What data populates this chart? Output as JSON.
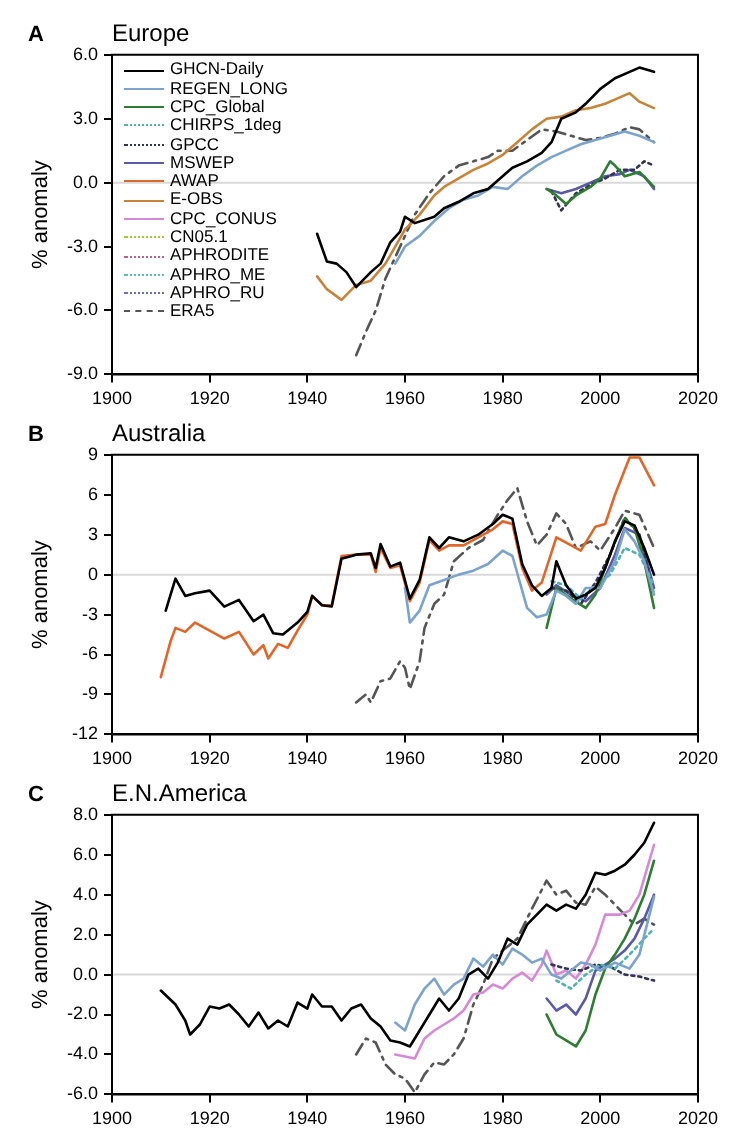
{
  "chart_data": [
    {
      "type": "line",
      "title": "Europe",
      "annotations": [
        "A"
      ],
      "ylabel": "% anomaly",
      "xlim": [
        1900,
        2020
      ],
      "xticks": [
        1900,
        1920,
        1940,
        1960,
        1980,
        2000,
        2020
      ],
      "ylim": [
        -9,
        6
      ],
      "yticks": [
        {
          "value": -9,
          "label": "-9.0"
        },
        {
          "value": -6,
          "label": "-6.0"
        },
        {
          "value": -3,
          "label": "-3.0"
        },
        {
          "value": 0,
          "label": "0.0"
        },
        {
          "value": 3,
          "label": "3.0"
        },
        {
          "value": 6,
          "label": "6.0"
        }
      ],
      "grid": false,
      "marker": "none",
      "legend": "top left",
      "ref_lines": [
        {
          "axis": "y",
          "value": 0,
          "color": "#d9d9d9"
        }
      ],
      "series": [
        {
          "name": "GHCN-Daily",
          "color": "#000000",
          "line_style": "solid",
          "x": [
            1942,
            1944,
            1946,
            1948,
            1950,
            1953,
            1955,
            1957,
            1959,
            1960,
            1962,
            1966,
            1968,
            1971,
            1974,
            1977,
            1979,
            1982,
            1985,
            1988,
            1990,
            1992,
            1995,
            1997,
            2000,
            2003,
            2006,
            2008,
            2011
          ],
          "values": [
            -2.4,
            -3.7,
            -3.8,
            -4.2,
            -4.9,
            -4.2,
            -3.8,
            -2.8,
            -2.3,
            -1.6,
            -1.9,
            -1.6,
            -1.2,
            -0.9,
            -0.5,
            -0.3,
            0.1,
            0.7,
            1.0,
            1.4,
            1.9,
            3.0,
            3.3,
            3.7,
            4.4,
            4.9,
            5.2,
            5.4,
            5.2
          ]
        },
        {
          "name": "REGEN_LONG",
          "color": "#7ba3cc",
          "line_style": "solid",
          "x": [
            1958,
            1960,
            1963,
            1966,
            1969,
            1972,
            1975,
            1978,
            1981,
            1984,
            1987,
            1990,
            1993,
            1996,
            1999,
            2002,
            2005,
            2008,
            2011
          ],
          "values": [
            -3.8,
            -3.0,
            -2.5,
            -1.8,
            -1.2,
            -0.8,
            -0.6,
            -0.2,
            -0.3,
            0.3,
            0.8,
            1.2,
            1.5,
            1.8,
            2.0,
            2.2,
            2.4,
            2.2,
            1.9
          ]
        },
        {
          "name": "CPC_Global",
          "color": "#2e7d32",
          "line_style": "solid",
          "x": [
            1989,
            1991,
            1993,
            1995,
            1998,
            2000,
            2002,
            2003,
            2005,
            2008,
            2011
          ],
          "values": [
            -0.3,
            -0.6,
            -1.0,
            -0.6,
            -0.2,
            0.2,
            1.0,
            0.8,
            0.3,
            0.5,
            -0.2
          ]
        },
        {
          "name": "CHIRPS_1deg",
          "color": "#4fb3b3",
          "line_style": "dotted"
        },
        {
          "name": "GPCC",
          "color": "#333355",
          "line_style": "dotted",
          "x": [
            1990,
            1992,
            1995,
            1998,
            2001,
            2004,
            2007,
            2009,
            2011
          ],
          "values": [
            -0.4,
            -1.3,
            -0.5,
            -0.1,
            0.2,
            0.6,
            0.6,
            1.0,
            0.8
          ]
        },
        {
          "name": "MSWEP",
          "color": "#5a5aa8",
          "line_style": "solid",
          "x": [
            1989,
            1992,
            1995,
            1998,
            2001,
            2004,
            2006,
            2009,
            2011
          ],
          "values": [
            -0.3,
            -0.5,
            -0.3,
            0.0,
            0.3,
            0.4,
            0.6,
            0.3,
            -0.3
          ]
        },
        {
          "name": "AWAP",
          "color": "#e0662a",
          "line_style": "solid"
        },
        {
          "name": "E-OBS",
          "color": "#c8843a",
          "line_style": "solid",
          "x": [
            1942,
            1944,
            1947,
            1950,
            1953,
            1956,
            1958,
            1960,
            1963,
            1966,
            1968,
            1971,
            1974,
            1977,
            1980,
            1983,
            1986,
            1989,
            1992,
            1995,
            1998,
            2001,
            2004,
            2006,
            2008,
            2011
          ],
          "values": [
            -4.4,
            -5.0,
            -5.5,
            -4.8,
            -4.6,
            -3.8,
            -3.0,
            -2.2,
            -1.5,
            -0.6,
            -0.2,
            0.2,
            0.6,
            0.9,
            1.3,
            1.9,
            2.5,
            3.0,
            3.1,
            3.4,
            3.5,
            3.7,
            4.0,
            4.2,
            3.8,
            3.5
          ]
        },
        {
          "name": "CPC_CONUS",
          "color": "#d68ad6",
          "line_style": "solid"
        },
        {
          "name": "CN05.1",
          "color": "#9acd32",
          "line_style": "dotted"
        },
        {
          "name": "APHRODITE",
          "color": "#c0608a",
          "line_style": "dotted"
        },
        {
          "name": "APHRO_ME",
          "color": "#5fc0b0",
          "line_style": "dotted"
        },
        {
          "name": "APHRO_RU",
          "color": "#7070b0",
          "line_style": "dotted"
        },
        {
          "name": "ERA5",
          "color": "#555555",
          "line_style": "dashed",
          "x": [
            1950,
            1952,
            1954,
            1956,
            1958,
            1960,
            1962,
            1965,
            1968,
            1971,
            1974,
            1977,
            1979,
            1982,
            1985,
            1988,
            1991,
            1994,
            1997,
            2000,
            2003,
            2006,
            2008,
            2011
          ],
          "values": [
            -8.1,
            -7.0,
            -6.0,
            -4.5,
            -3.5,
            -2.5,
            -1.5,
            -0.5,
            0.3,
            0.8,
            1.0,
            1.2,
            1.5,
            1.5,
            2.0,
            2.5,
            2.4,
            2.2,
            2.0,
            2.1,
            2.3,
            2.6,
            2.5,
            1.9
          ]
        }
      ]
    },
    {
      "type": "line",
      "title": "Australia",
      "annotations": [
        "B"
      ],
      "ylabel": "% anomaly",
      "xlim": [
        1900,
        2020
      ],
      "xticks": [
        1900,
        1920,
        1940,
        1960,
        1980,
        2000,
        2020
      ],
      "ylim": [
        -12,
        9
      ],
      "yticks": [
        -12,
        -9,
        -6,
        -3,
        0,
        3,
        6,
        9
      ],
      "grid": false,
      "marker": "none",
      "ref_lines": [
        {
          "axis": "y",
          "value": 0,
          "color": "#d9d9d9"
        }
      ],
      "series": [
        {
          "color": "#000000",
          "line_style": "solid",
          "x": [
            1911,
            1913,
            1915,
            1917,
            1920,
            1923,
            1926,
            1929,
            1931,
            1933,
            1935,
            1938,
            1940,
            1941,
            1943,
            1945,
            1947,
            1950,
            1953,
            1954,
            1955,
            1957,
            1959,
            1961,
            1963,
            1965,
            1967,
            1969,
            1972,
            1975,
            1978,
            1980,
            1982,
            1984,
            1986,
            1988,
            1990,
            1991,
            1993,
            1995,
            1997,
            1999,
            2001,
            2003,
            2005,
            2007,
            2009,
            2011
          ],
          "values": [
            -2.7,
            -0.3,
            -1.6,
            -1.4,
            -1.2,
            -2.4,
            -1.9,
            -3.5,
            -3.0,
            -4.4,
            -4.5,
            -3.6,
            -2.8,
            -1.6,
            -2.3,
            -2.4,
            1.2,
            1.5,
            1.6,
            0.5,
            2.3,
            0.6,
            0.9,
            -1.8,
            -0.4,
            2.8,
            2.0,
            2.8,
            2.5,
            3.0,
            3.8,
            4.5,
            4.2,
            0.8,
            -0.8,
            -1.6,
            -1.0,
            1.0,
            -0.8,
            -1.8,
            -1.5,
            -1.0,
            0.5,
            2.5,
            4.0,
            3.7,
            2.0,
            0.0
          ]
        },
        {
          "color": "#7ba3cc",
          "line_style": "solid",
          "x": [
            1960,
            1961,
            1963,
            1965,
            1968,
            1971,
            1974,
            1977,
            1980,
            1982,
            1985,
            1987,
            1989,
            1991,
            1993,
            1995,
            1997,
            2000,
            2003,
            2005,
            2007,
            2009,
            2011
          ],
          "values": [
            -1.0,
            -3.6,
            -2.7,
            -0.8,
            -0.4,
            0.0,
            0.3,
            0.8,
            1.8,
            1.4,
            -2.5,
            -3.2,
            -3.0,
            -1.2,
            -1.6,
            -2.2,
            -1.0,
            -1.0,
            1.0,
            3.4,
            2.5,
            1.0,
            -1.5
          ]
        },
        {
          "color": "#2e7d32",
          "line_style": "solid",
          "x": [
            1989,
            1991,
            1994,
            1997,
            1999,
            2001,
            2003,
            2005,
            2007,
            2009,
            2011
          ],
          "values": [
            -4.0,
            -1.0,
            -1.8,
            -2.5,
            -1.5,
            0.5,
            2.5,
            4.2,
            3.5,
            1.0,
            -2.5
          ]
        },
        {
          "color": "#4fb3b3",
          "line_style": "dotted",
          "x": [
            1990,
            1993,
            1996,
            1999,
            2002,
            2005,
            2008,
            2011
          ],
          "values": [
            -0.5,
            -0.8,
            -1.8,
            -0.8,
            0.0,
            2.0,
            1.5,
            -0.8
          ]
        },
        {
          "color": "#333355",
          "line_style": "dotted",
          "x": [
            1990,
            1993,
            1996,
            1999,
            2002,
            2005,
            2008,
            2011
          ],
          "values": [
            -1.0,
            -1.2,
            -2.2,
            -0.6,
            1.5,
            4.3,
            3.0,
            -1.5
          ]
        },
        {
          "color": "#5a5aa8",
          "line_style": "solid",
          "x": [
            1989,
            1991,
            1994,
            1997,
            2000,
            2003,
            2005,
            2008,
            2011
          ],
          "values": [
            -1.5,
            -0.8,
            -1.5,
            -2.0,
            -1.0,
            1.5,
            3.5,
            3.0,
            -1.0
          ]
        },
        {
          "color": "#e0662a",
          "line_style": "solid",
          "x": [
            1910,
            1912,
            1913,
            1915,
            1917,
            1920,
            1923,
            1926,
            1929,
            1931,
            1932,
            1934,
            1936,
            1938,
            1940,
            1941,
            1943,
            1945,
            1947,
            1950,
            1953,
            1954,
            1955,
            1957,
            1959,
            1961,
            1963,
            1965,
            1967,
            1969,
            1972,
            1975,
            1978,
            1980,
            1982,
            1984,
            1986,
            1988,
            1991,
            1993,
            1996,
            1999,
            2001,
            2003,
            2006,
            2008,
            2011
          ],
          "values": [
            -7.7,
            -5.0,
            -4.0,
            -4.3,
            -3.6,
            -4.2,
            -4.8,
            -4.3,
            -6.0,
            -5.3,
            -6.3,
            -5.2,
            -5.5,
            -4.2,
            -3.0,
            -1.6,
            -2.3,
            -2.3,
            1.4,
            1.5,
            1.5,
            0.2,
            2.0,
            0.5,
            0.7,
            -2.0,
            -0.6,
            2.6,
            1.8,
            2.2,
            2.2,
            2.8,
            3.4,
            4.0,
            3.8,
            0.5,
            -1.2,
            -0.6,
            2.8,
            2.4,
            1.8,
            3.6,
            3.8,
            6.0,
            8.8,
            8.8,
            6.7
          ]
        },
        {
          "color": "#555555",
          "line_style": "dashed",
          "x": [
            1950,
            1952,
            1953,
            1955,
            1957,
            1959,
            1960,
            1961,
            1963,
            1964,
            1966,
            1968,
            1970,
            1973,
            1976,
            1979,
            1981,
            1983,
            1985,
            1987,
            1989,
            1991,
            1993,
            1995,
            1998,
            2000,
            2003,
            2005,
            2008,
            2011
          ],
          "values": [
            -9.6,
            -9.0,
            -9.6,
            -8.0,
            -7.8,
            -6.5,
            -7.0,
            -8.6,
            -6.5,
            -4.0,
            -2.2,
            -1.5,
            1.0,
            2.0,
            2.6,
            4.5,
            5.6,
            6.5,
            4.0,
            2.2,
            3.0,
            4.6,
            3.8,
            2.0,
            2.5,
            1.8,
            3.5,
            4.8,
            4.5,
            2.0
          ]
        }
      ]
    },
    {
      "type": "line",
      "title": "E.N.America",
      "annotations": [
        "C"
      ],
      "ylabel": "% anomaly",
      "xlim": [
        1900,
        2020
      ],
      "xticks": [
        1900,
        1920,
        1940,
        1960,
        1980,
        2000,
        2020
      ],
      "ylim": [
        -6,
        8
      ],
      "yticks": [
        {
          "value": -6,
          "label": "-6.0"
        },
        {
          "value": -4,
          "label": "-4.0"
        },
        {
          "value": -2,
          "label": "-2.0"
        },
        {
          "value": 0,
          "label": "0.0"
        },
        {
          "value": 2,
          "label": "2.0"
        },
        {
          "value": 4,
          "label": "4.0"
        },
        {
          "value": 6,
          "label": "6.0"
        },
        {
          "value": 8,
          "label": "8.0"
        }
      ],
      "grid": false,
      "marker": "none",
      "ref_lines": [
        {
          "axis": "y",
          "value": 0,
          "color": "#d9d9d9"
        }
      ],
      "series": [
        {
          "color": "#000000",
          "line_style": "solid",
          "x": [
            1910,
            1913,
            1915,
            1916,
            1918,
            1920,
            1922,
            1924,
            1926,
            1928,
            1930,
            1932,
            1934,
            1936,
            1938,
            1940,
            1941,
            1943,
            1945,
            1947,
            1949,
            1951,
            1953,
            1955,
            1957,
            1959,
            1961,
            1963,
            1965,
            1967,
            1969,
            1971,
            1973,
            1975,
            1977,
            1979,
            1981,
            1983,
            1985,
            1987,
            1989,
            1991,
            1993,
            1995,
            1997,
            1999,
            2001,
            2003,
            2005,
            2007,
            2009,
            2011
          ],
          "values": [
            -0.8,
            -1.5,
            -2.3,
            -3.0,
            -2.5,
            -1.6,
            -1.7,
            -1.5,
            -2.0,
            -2.6,
            -1.9,
            -2.7,
            -2.3,
            -2.6,
            -1.4,
            -1.7,
            -1.0,
            -1.6,
            -1.6,
            -2.3,
            -1.7,
            -1.5,
            -2.2,
            -2.6,
            -3.3,
            -3.4,
            -3.6,
            -2.8,
            -2.0,
            -1.2,
            -1.8,
            -1.2,
            0.0,
            0.3,
            -0.2,
            0.6,
            1.8,
            1.5,
            2.5,
            3.0,
            3.5,
            3.2,
            3.5,
            3.3,
            4.0,
            5.1,
            5.0,
            5.2,
            5.5,
            6.0,
            6.6,
            7.6
          ]
        },
        {
          "color": "#7ba3cc",
          "line_style": "solid",
          "x": [
            1958,
            1960,
            1962,
            1964,
            1966,
            1968,
            1970,
            1972,
            1974,
            1976,
            1978,
            1980,
            1982,
            1984,
            1986,
            1988,
            1990,
            1992,
            1994,
            1996,
            1998,
            2000,
            2003,
            2006,
            2008,
            2011
          ],
          "values": [
            -2.4,
            -2.8,
            -1.5,
            -0.7,
            -0.2,
            -1.0,
            -0.5,
            -0.2,
            0.8,
            0.4,
            1.0,
            0.5,
            1.3,
            1.0,
            0.6,
            0.8,
            0.0,
            -0.2,
            0.2,
            0.6,
            0.5,
            0.2,
            0.6,
            0.3,
            1.0,
            3.9
          ]
        },
        {
          "color": "#2e7d32",
          "line_style": "solid",
          "x": [
            1989,
            1991,
            1993,
            1995,
            1997,
            1999,
            2001,
            2003,
            2005,
            2007,
            2009,
            2011
          ],
          "values": [
            -2.0,
            -3.0,
            -3.3,
            -3.6,
            -2.8,
            -1.0,
            0.3,
            1.0,
            1.8,
            2.8,
            4.0,
            5.7
          ]
        },
        {
          "color": "#4fb3b3",
          "line_style": "dotted",
          "x": [
            1991,
            1994,
            1997,
            2000,
            2003,
            2006,
            2009,
            2011
          ],
          "values": [
            -0.3,
            -0.7,
            0.0,
            0.5,
            0.3,
            1.0,
            1.8,
            2.3
          ]
        },
        {
          "color": "#333355",
          "line_style": "dotted",
          "x": [
            1990,
            1993,
            1996,
            1999,
            2002,
            2005,
            2008,
            2011
          ],
          "values": [
            0.5,
            0.3,
            0.2,
            0.5,
            0.4,
            0.0,
            -0.1,
            -0.3
          ]
        },
        {
          "color": "#5a5aa8",
          "line_style": "solid",
          "x": [
            1989,
            1991,
            1993,
            1995,
            1997,
            1999,
            2001,
            2003,
            2005,
            2007,
            2009,
            2011
          ],
          "values": [
            -1.2,
            -1.8,
            -1.5,
            -2.0,
            -1.2,
            0.2,
            0.5,
            0.8,
            1.2,
            1.8,
            2.8,
            4.0
          ]
        },
        {
          "color": "#d68ad6",
          "line_style": "solid",
          "x": [
            1958,
            1962,
            1964,
            1966,
            1968,
            1970,
            1972,
            1974,
            1976,
            1978,
            1980,
            1982,
            1984,
            1986,
            1988,
            1989,
            1991,
            1993,
            1995,
            1997,
            1999,
            2001,
            2004,
            2006,
            2008,
            2011
          ],
          "values": [
            -4.0,
            -4.2,
            -3.2,
            -2.8,
            -2.5,
            -2.2,
            -1.8,
            -1.0,
            -0.9,
            -0.5,
            -0.7,
            -0.2,
            0.1,
            -0.3,
            0.5,
            1.2,
            0.0,
            0.2,
            -0.2,
            0.5,
            1.5,
            3.0,
            3.0,
            3.2,
            4.0,
            6.5
          ]
        },
        {
          "color": "#555555",
          "line_style": "dashed",
          "x": [
            1950,
            1952,
            1954,
            1956,
            1958,
            1960,
            1962,
            1964,
            1966,
            1968,
            1970,
            1972,
            1974,
            1976,
            1978,
            1980,
            1983,
            1986,
            1989,
            1991,
            1993,
            1995,
            1997,
            1999,
            2001,
            2003,
            2005,
            2007,
            2009,
            2011
          ],
          "values": [
            -4.0,
            -3.2,
            -3.4,
            -4.5,
            -5.0,
            -5.2,
            -5.9,
            -5.0,
            -4.4,
            -4.5,
            -4.0,
            -3.2,
            -1.5,
            -0.5,
            0.8,
            1.2,
            1.8,
            3.3,
            4.7,
            4.0,
            4.2,
            3.6,
            3.5,
            4.4,
            4.0,
            3.5,
            3.0,
            2.5,
            2.8,
            2.5
          ]
        }
      ]
    }
  ]
}
